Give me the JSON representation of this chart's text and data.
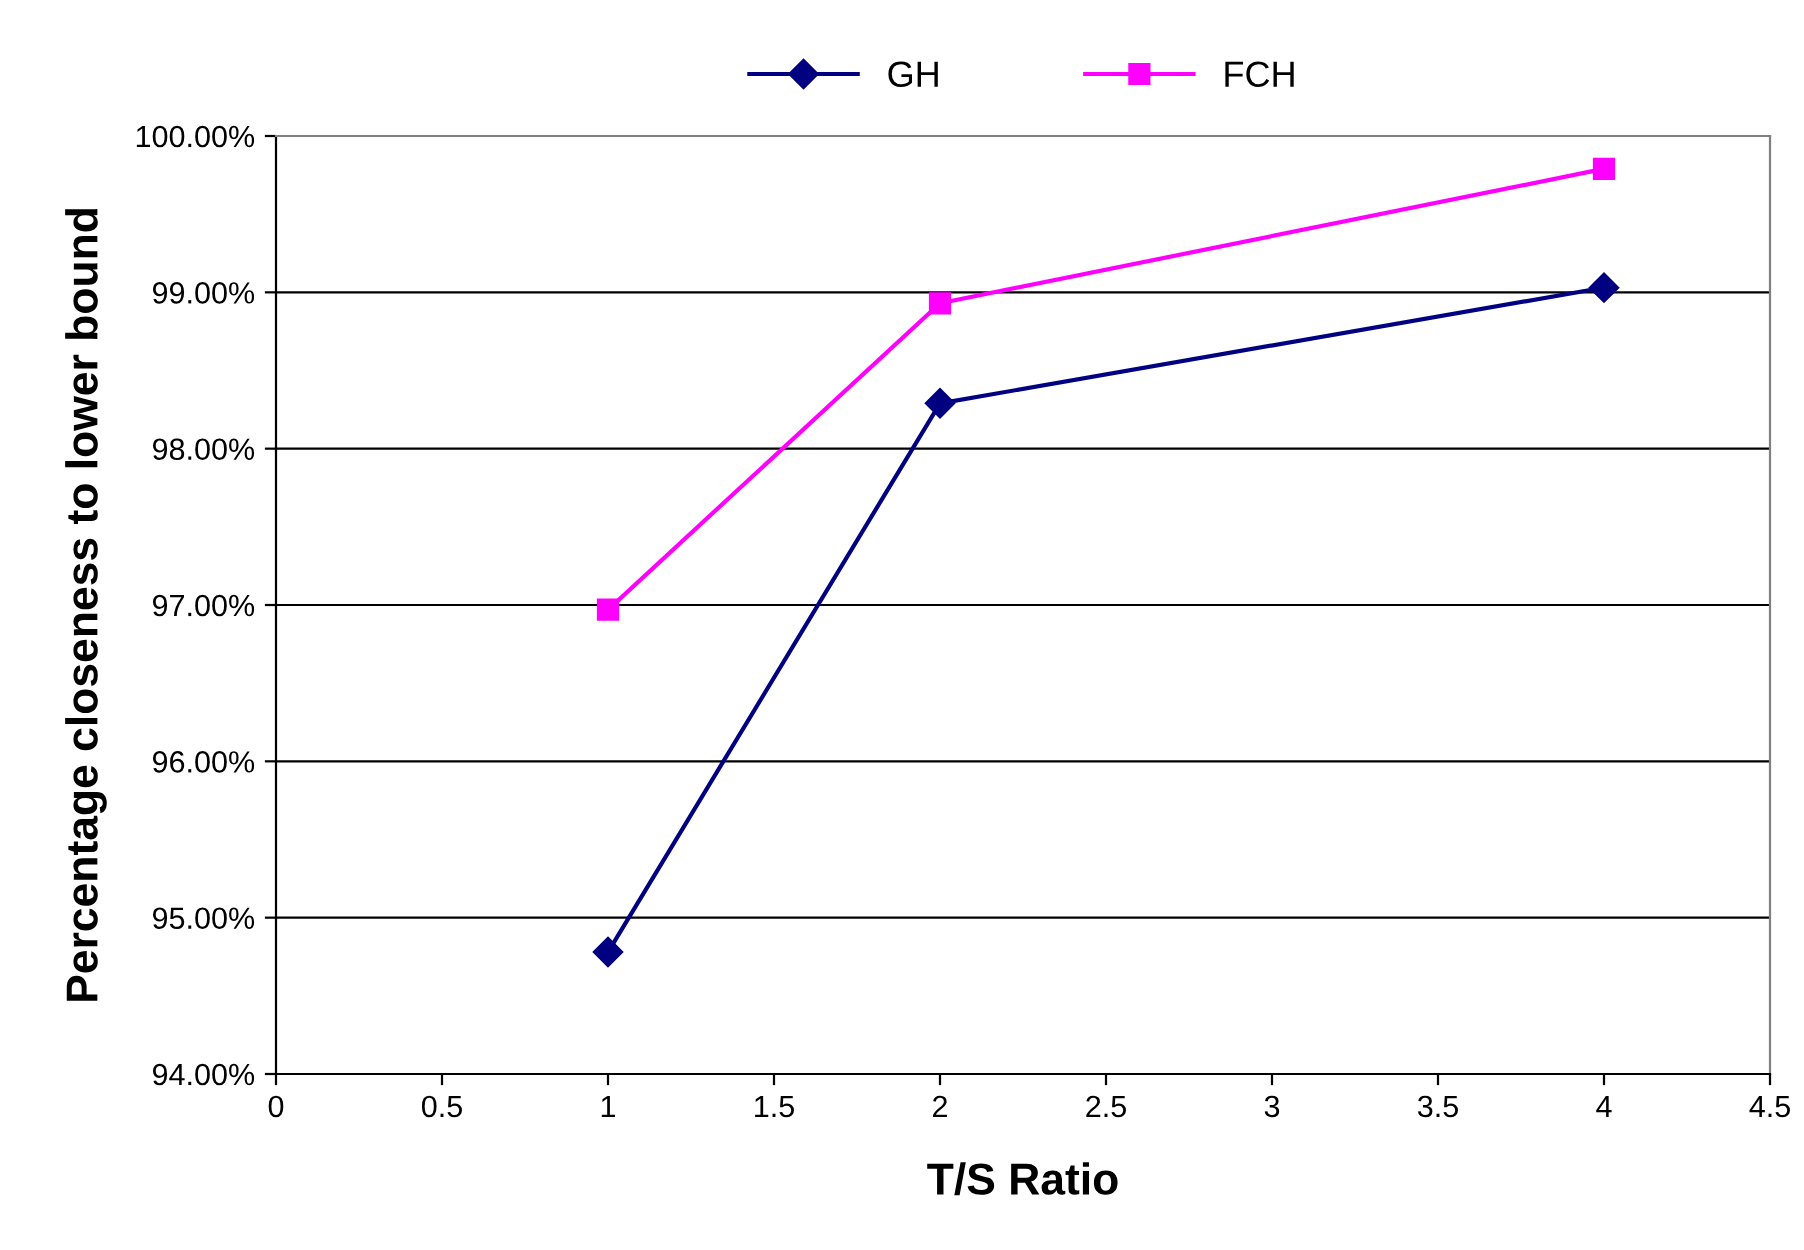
{
  "chart_data": {
    "type": "line",
    "xlabel": "T/S Ratio",
    "ylabel": "Percentage closeness to lower bound",
    "x": [
      1,
      2,
      4
    ],
    "series": [
      {
        "name": "GH",
        "color": "#000080",
        "marker": "diamond",
        "values": [
          94.78,
          98.29,
          99.03
        ]
      },
      {
        "name": "FCH",
        "color": "#ff00ff",
        "marker": "square",
        "values": [
          96.97,
          98.93,
          99.79
        ]
      }
    ],
    "xlim": [
      0,
      4.5
    ],
    "xticks": [
      0,
      0.5,
      1,
      1.5,
      2,
      2.5,
      3,
      3.5,
      4,
      4.5
    ],
    "ylim": [
      94,
      100
    ],
    "yticks": [
      {
        "value": 94,
        "label": "94.00%"
      },
      {
        "value": 95,
        "label": "95.00%"
      },
      {
        "value": 96,
        "label": "96.00%"
      },
      {
        "value": 97,
        "label": "97.00%"
      },
      {
        "value": 98,
        "label": "98.00%"
      },
      {
        "value": 99,
        "label": "99.00%"
      },
      {
        "value": 100,
        "label": "100.00%"
      }
    ],
    "grid": "y",
    "legend": "top",
    "line_style": "solid"
  }
}
